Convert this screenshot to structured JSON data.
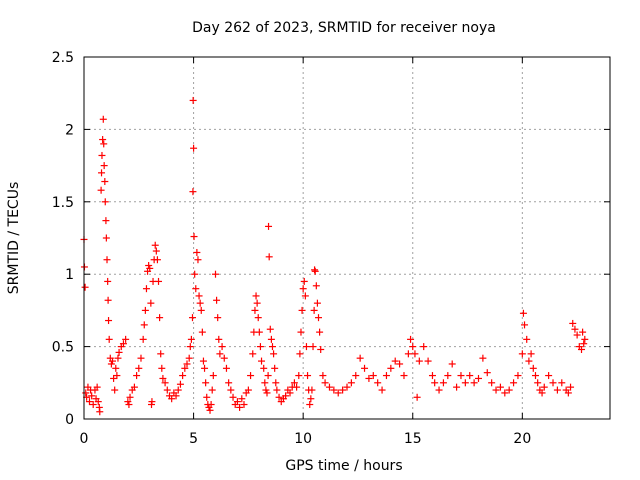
{
  "chart_data": {
    "type": "scatter",
    "title": "Day 262 of 2023, SRMTID for receiver noya",
    "xlabel": "GPS time / hours",
    "ylabel": "SRMTID / TECUs",
    "xlim": [
      0,
      24
    ],
    "ylim": [
      0,
      2.5
    ],
    "x_ticks": [
      0,
      5,
      10,
      15,
      20
    ],
    "x_tick_labels": [
      "0",
      "5",
      "10",
      "15",
      "20"
    ],
    "y_ticks": [
      0,
      0.5,
      1,
      1.5,
      2,
      2.5
    ],
    "y_tick_labels": [
      "0",
      "0.5",
      "1",
      "1.5",
      "2",
      "2.5"
    ],
    "grid": true,
    "marker": "+",
    "series": [
      {
        "name": "noya",
        "color": "#ff0000",
        "points": [
          [
            0.0,
            1.24
          ],
          [
            0.02,
            1.05
          ],
          [
            0.05,
            0.91
          ],
          [
            0.08,
            0.18
          ],
          [
            0.12,
            0.15
          ],
          [
            0.18,
            0.22
          ],
          [
            0.25,
            0.12
          ],
          [
            0.3,
            0.2
          ],
          [
            0.35,
            0.16
          ],
          [
            0.42,
            0.1
          ],
          [
            0.5,
            0.2
          ],
          [
            0.55,
            0.14
          ],
          [
            0.6,
            0.22
          ],
          [
            0.65,
            0.12
          ],
          [
            0.7,
            0.08
          ],
          [
            0.72,
            0.05
          ],
          [
            0.78,
            1.58
          ],
          [
            0.8,
            1.7
          ],
          [
            0.82,
            1.82
          ],
          [
            0.85,
            1.93
          ],
          [
            0.88,
            2.07
          ],
          [
            0.9,
            1.9
          ],
          [
            0.92,
            1.75
          ],
          [
            0.95,
            1.64
          ],
          [
            0.97,
            1.5
          ],
          [
            1.0,
            1.37
          ],
          [
            1.02,
            1.25
          ],
          [
            1.05,
            1.1
          ],
          [
            1.08,
            0.95
          ],
          [
            1.1,
            0.82
          ],
          [
            1.12,
            0.68
          ],
          [
            1.15,
            0.55
          ],
          [
            1.2,
            0.42
          ],
          [
            1.25,
            0.38
          ],
          [
            1.3,
            0.4
          ],
          [
            1.35,
            0.28
          ],
          [
            1.4,
            0.2
          ],
          [
            1.45,
            0.35
          ],
          [
            1.5,
            0.3
          ],
          [
            1.55,
            0.42
          ],
          [
            1.6,
            0.46
          ],
          [
            1.7,
            0.5
          ],
          [
            1.8,
            0.52
          ],
          [
            1.9,
            0.55
          ],
          [
            2.0,
            0.12
          ],
          [
            2.05,
            0.1
          ],
          [
            2.1,
            0.15
          ],
          [
            2.2,
            0.2
          ],
          [
            2.3,
            0.22
          ],
          [
            2.4,
            0.3
          ],
          [
            2.5,
            0.35
          ],
          [
            2.6,
            0.42
          ],
          [
            2.7,
            0.55
          ],
          [
            2.75,
            0.65
          ],
          [
            2.8,
            0.75
          ],
          [
            2.85,
            0.9
          ],
          [
            2.9,
            1.02
          ],
          [
            2.95,
            1.06
          ],
          [
            3.0,
            1.04
          ],
          [
            3.05,
            0.8
          ],
          [
            3.08,
            0.1
          ],
          [
            3.1,
            0.12
          ],
          [
            3.15,
            0.95
          ],
          [
            3.2,
            1.1
          ],
          [
            3.25,
            1.2
          ],
          [
            3.3,
            1.16
          ],
          [
            3.35,
            1.1
          ],
          [
            3.4,
            0.95
          ],
          [
            3.45,
            0.7
          ],
          [
            3.5,
            0.45
          ],
          [
            3.55,
            0.35
          ],
          [
            3.6,
            0.28
          ],
          [
            3.7,
            0.25
          ],
          [
            3.8,
            0.2
          ],
          [
            3.9,
            0.16
          ],
          [
            4.0,
            0.14
          ],
          [
            4.1,
            0.18
          ],
          [
            4.2,
            0.16
          ],
          [
            4.3,
            0.2
          ],
          [
            4.4,
            0.24
          ],
          [
            4.5,
            0.3
          ],
          [
            4.6,
            0.35
          ],
          [
            4.7,
            0.38
          ],
          [
            4.8,
            0.42
          ],
          [
            4.85,
            0.5
          ],
          [
            4.9,
            0.55
          ],
          [
            4.95,
            0.7
          ],
          [
            4.97,
            1.57
          ],
          [
            4.98,
            2.2
          ],
          [
            5.0,
            1.87
          ],
          [
            5.02,
            1.26
          ],
          [
            5.05,
            1.0
          ],
          [
            5.1,
            0.9
          ],
          [
            5.15,
            1.15
          ],
          [
            5.2,
            1.1
          ],
          [
            5.25,
            0.85
          ],
          [
            5.3,
            0.8
          ],
          [
            5.35,
            0.75
          ],
          [
            5.4,
            0.6
          ],
          [
            5.45,
            0.4
          ],
          [
            5.5,
            0.35
          ],
          [
            5.55,
            0.25
          ],
          [
            5.6,
            0.15
          ],
          [
            5.65,
            0.1
          ],
          [
            5.7,
            0.08
          ],
          [
            5.75,
            0.06
          ],
          [
            5.8,
            0.1
          ],
          [
            5.85,
            0.2
          ],
          [
            5.9,
            0.3
          ],
          [
            6.0,
            1.0
          ],
          [
            6.05,
            0.82
          ],
          [
            6.1,
            0.7
          ],
          [
            6.15,
            0.55
          ],
          [
            6.2,
            0.45
          ],
          [
            6.3,
            0.5
          ],
          [
            6.4,
            0.42
          ],
          [
            6.5,
            0.35
          ],
          [
            6.6,
            0.25
          ],
          [
            6.7,
            0.2
          ],
          [
            6.8,
            0.15
          ],
          [
            6.9,
            0.1
          ],
          [
            7.0,
            0.12
          ],
          [
            7.1,
            0.08
          ],
          [
            7.2,
            0.14
          ],
          [
            7.3,
            0.1
          ],
          [
            7.4,
            0.18
          ],
          [
            7.5,
            0.2
          ],
          [
            7.6,
            0.3
          ],
          [
            7.7,
            0.45
          ],
          [
            7.75,
            0.6
          ],
          [
            7.8,
            0.75
          ],
          [
            7.85,
            0.85
          ],
          [
            7.9,
            0.8
          ],
          [
            7.95,
            0.7
          ],
          [
            8.0,
            0.6
          ],
          [
            8.05,
            0.5
          ],
          [
            8.1,
            0.4
          ],
          [
            8.2,
            0.35
          ],
          [
            8.25,
            0.25
          ],
          [
            8.3,
            0.2
          ],
          [
            8.35,
            0.18
          ],
          [
            8.4,
            0.3
          ],
          [
            8.42,
            1.33
          ],
          [
            8.45,
            1.12
          ],
          [
            8.5,
            0.62
          ],
          [
            8.55,
            0.55
          ],
          [
            8.6,
            0.5
          ],
          [
            8.65,
            0.45
          ],
          [
            8.7,
            0.35
          ],
          [
            8.75,
            0.25
          ],
          [
            8.8,
            0.2
          ],
          [
            8.9,
            0.15
          ],
          [
            9.0,
            0.12
          ],
          [
            9.1,
            0.14
          ],
          [
            9.2,
            0.16
          ],
          [
            9.3,
            0.2
          ],
          [
            9.4,
            0.18
          ],
          [
            9.5,
            0.22
          ],
          [
            9.6,
            0.25
          ],
          [
            9.7,
            0.22
          ],
          [
            9.8,
            0.3
          ],
          [
            9.85,
            0.45
          ],
          [
            9.9,
            0.6
          ],
          [
            9.95,
            0.75
          ],
          [
            10.0,
            0.9
          ],
          [
            10.05,
            0.95
          ],
          [
            10.1,
            0.85
          ],
          [
            10.15,
            0.5
          ],
          [
            10.2,
            0.3
          ],
          [
            10.25,
            0.2
          ],
          [
            10.3,
            0.1
          ],
          [
            10.35,
            0.14
          ],
          [
            10.4,
            0.2
          ],
          [
            10.45,
            0.5
          ],
          [
            10.5,
            0.75
          ],
          [
            10.52,
            1.03
          ],
          [
            10.55,
            1.02
          ],
          [
            10.6,
            0.92
          ],
          [
            10.65,
            0.8
          ],
          [
            10.7,
            0.7
          ],
          [
            10.75,
            0.6
          ],
          [
            10.8,
            0.48
          ],
          [
            10.9,
            0.3
          ],
          [
            11.0,
            0.25
          ],
          [
            11.2,
            0.22
          ],
          [
            11.4,
            0.2
          ],
          [
            11.6,
            0.18
          ],
          [
            11.8,
            0.2
          ],
          [
            12.0,
            0.22
          ],
          [
            12.2,
            0.25
          ],
          [
            12.4,
            0.3
          ],
          [
            12.6,
            0.42
          ],
          [
            12.8,
            0.35
          ],
          [
            13.0,
            0.28
          ],
          [
            13.2,
            0.3
          ],
          [
            13.4,
            0.25
          ],
          [
            13.6,
            0.2
          ],
          [
            13.8,
            0.3
          ],
          [
            14.0,
            0.35
          ],
          [
            14.2,
            0.4
          ],
          [
            14.4,
            0.38
          ],
          [
            14.6,
            0.3
          ],
          [
            14.8,
            0.45
          ],
          [
            14.9,
            0.55
          ],
          [
            15.0,
            0.5
          ],
          [
            15.1,
            0.45
          ],
          [
            15.2,
            0.15
          ],
          [
            15.3,
            0.4
          ],
          [
            15.5,
            0.5
          ],
          [
            15.7,
            0.4
          ],
          [
            15.9,
            0.3
          ],
          [
            16.0,
            0.25
          ],
          [
            16.2,
            0.2
          ],
          [
            16.4,
            0.25
          ],
          [
            16.6,
            0.3
          ],
          [
            16.8,
            0.38
          ],
          [
            17.0,
            0.22
          ],
          [
            17.2,
            0.3
          ],
          [
            17.4,
            0.25
          ],
          [
            17.6,
            0.3
          ],
          [
            17.8,
            0.25
          ],
          [
            18.0,
            0.28
          ],
          [
            18.2,
            0.42
          ],
          [
            18.4,
            0.32
          ],
          [
            18.6,
            0.25
          ],
          [
            18.8,
            0.2
          ],
          [
            19.0,
            0.22
          ],
          [
            19.2,
            0.18
          ],
          [
            19.4,
            0.2
          ],
          [
            19.6,
            0.25
          ],
          [
            19.8,
            0.3
          ],
          [
            20.0,
            0.45
          ],
          [
            20.05,
            0.73
          ],
          [
            20.1,
            0.65
          ],
          [
            20.2,
            0.55
          ],
          [
            20.3,
            0.4
          ],
          [
            20.4,
            0.45
          ],
          [
            20.5,
            0.35
          ],
          [
            20.6,
            0.3
          ],
          [
            20.7,
            0.25
          ],
          [
            20.8,
            0.2
          ],
          [
            20.9,
            0.18
          ],
          [
            21.0,
            0.22
          ],
          [
            21.2,
            0.3
          ],
          [
            21.4,
            0.25
          ],
          [
            21.6,
            0.2
          ],
          [
            21.8,
            0.25
          ],
          [
            22.0,
            0.2
          ],
          [
            22.1,
            0.18
          ],
          [
            22.2,
            0.22
          ],
          [
            22.3,
            0.66
          ],
          [
            22.4,
            0.62
          ],
          [
            22.5,
            0.58
          ],
          [
            22.6,
            0.5
          ],
          [
            22.7,
            0.48
          ],
          [
            22.75,
            0.6
          ],
          [
            22.8,
            0.52
          ],
          [
            22.85,
            0.55
          ]
        ]
      }
    ]
  }
}
